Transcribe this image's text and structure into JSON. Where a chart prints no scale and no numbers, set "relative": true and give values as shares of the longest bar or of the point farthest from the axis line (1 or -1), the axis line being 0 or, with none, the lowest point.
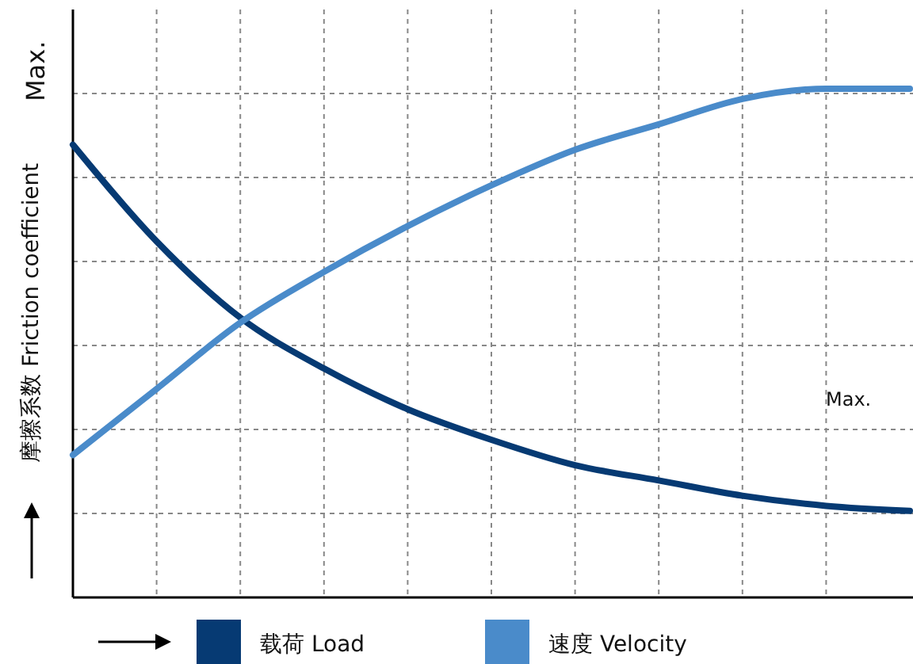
{
  "chart_data": {
    "type": "line",
    "relative": true,
    "ylabel": "摩擦系数 Friction coefficient",
    "annotations": [
      "Max.",
      "Max."
    ],
    "categories": [
      null,
      null,
      null,
      null,
      null,
      null,
      null,
      null,
      null,
      null,
      null
    ],
    "series": [
      {
        "name": "载荷 Load",
        "color": "#063a73",
        "values": [
          0.89,
          0.7,
          0.55,
          0.45,
          0.37,
          0.31,
          0.26,
          0.23,
          0.2,
          0.18,
          0.17
        ]
      },
      {
        "name": "速度 Velocity",
        "color": "#4a8bca",
        "values": [
          0.28,
          0.41,
          0.54,
          0.64,
          0.73,
          0.81,
          0.88,
          0.93,
          0.98,
          1,
          1
        ]
      }
    ],
    "grid": true,
    "legend": "bottom",
    "marker": "none",
    "line_style": "solid"
  }
}
